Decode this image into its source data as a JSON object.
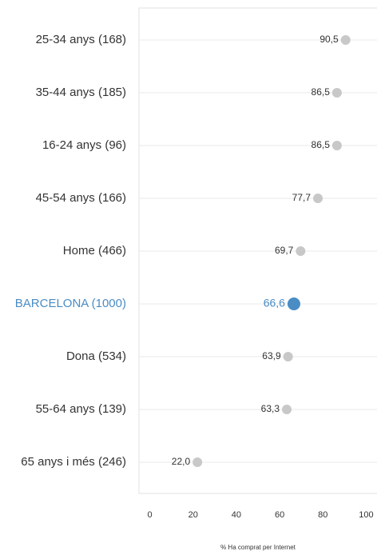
{
  "chart_data": {
    "type": "dot",
    "x_label": "% Ha comprat per Internet",
    "categories": [
      "25-34 anys (168)",
      "35-44 anys (185)",
      "16-24 anys (96)",
      "45-54 anys (166)",
      "Home (466)",
      "BARCELONA (1000)",
      "Dona (534)",
      "55-64 anys (139)",
      "65 anys i més (246)"
    ],
    "values": [
      90.5,
      86.5,
      86.5,
      77.7,
      69.7,
      66.6,
      63.9,
      63.3,
      22.0
    ],
    "value_labels": [
      "90,5",
      "86,5",
      "86,5",
      "77,7",
      "69,7",
      "66,6",
      "63,9",
      "63,3",
      "22,0"
    ],
    "point_colors": [
      "#c8c8c8",
      "#c8c8c8",
      "#c8c8c8",
      "#c8c8c8",
      "#c8c8c8",
      "#4a8cc4",
      "#c8c8c8",
      "#c8c8c8",
      "#c8c8c8"
    ],
    "xlim": [
      -5,
      105
    ],
    "xticks": [
      0,
      20,
      40,
      60,
      80,
      100
    ]
  }
}
